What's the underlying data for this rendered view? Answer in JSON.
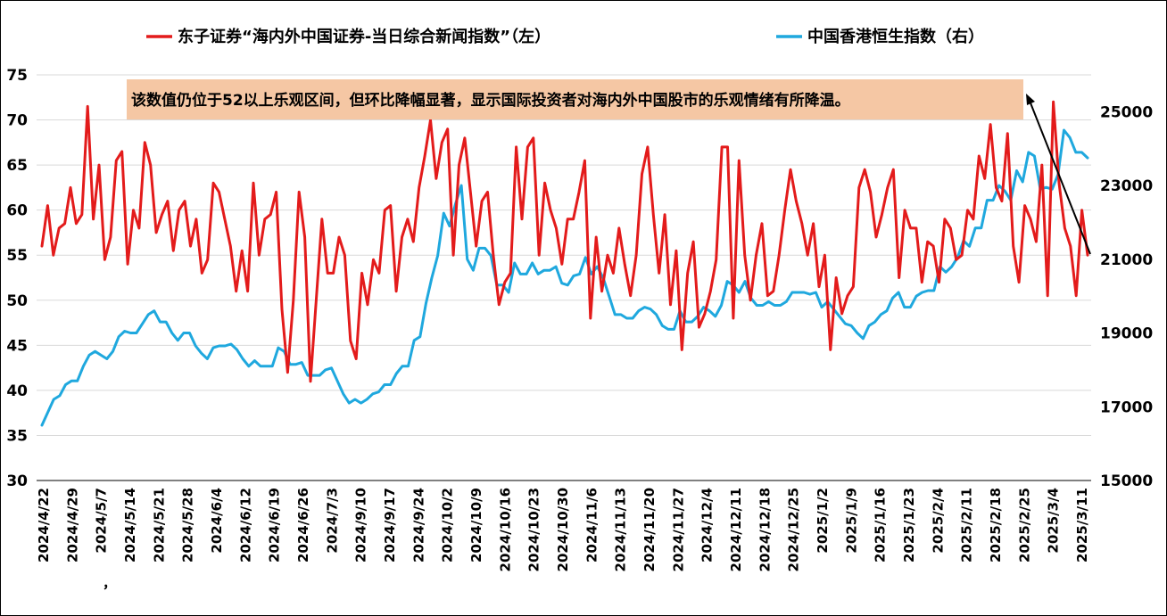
{
  "colors": {
    "red_series": "#e31b1b",
    "blue_series": "#1fa8de",
    "annotation_bg": "#f5c7a4",
    "grid": "#d9d9d9",
    "axis": "#000000"
  },
  "annotation": {
    "text": "该数值仍位于52以上乐观区间，但环比降幅显著，显示国际投资者对海内外中国股市的乐观情绪有所降温。"
  },
  "stray_mark": "，",
  "chart_data": {
    "type": "line",
    "title": "",
    "xlabel": "",
    "grid": "horizontal",
    "legend_position": "top",
    "x_tick_labels": [
      "2024/4/22",
      "2024/4/29",
      "2024/5/7",
      "2024/5/14",
      "2024/5/21",
      "2024/5/28",
      "2024/6/4",
      "2024/6/12",
      "2024/6/19",
      "2024/6/26",
      "2024/7/3",
      "2024/9/10",
      "2024/9/17",
      "2024/9/24",
      "2024/10/2",
      "2024/10/9",
      "2024/10/16",
      "2024/10/23",
      "2024/10/30",
      "2024/11/6",
      "2024/11/13",
      "2024/11/20",
      "2024/11/27",
      "2024/12/4",
      "2024/12/11",
      "2024/12/18",
      "2024/12/25",
      "2025/1/2",
      "2025/1/9",
      "2025/1/16",
      "2025/1/23",
      "2025/2/4",
      "2025/2/11",
      "2025/2/18",
      "2025/2/25",
      "2025/3/4",
      "2025/3/11"
    ],
    "y_left": {
      "min": 30,
      "max": 75,
      "step": 5,
      "tick_labels": [
        "30",
        "35",
        "40",
        "45",
        "50",
        "55",
        "60",
        "65",
        "70",
        "75"
      ]
    },
    "y_right": {
      "min": 15000,
      "max": 26000,
      "tick_labels": [
        "15000",
        "17000",
        "19000",
        "21000",
        "23000",
        "25000"
      ]
    },
    "series": [
      {
        "name": "东子证券“海内外中国证券-当日综合新闻指数”（左）",
        "axis": "left",
        "values": [
          56,
          60.5,
          55,
          58,
          58.5,
          62.5,
          58.5,
          59.5,
          71.5,
          59,
          65,
          54.5,
          57,
          65.5,
          66.5,
          54,
          60,
          58,
          67.5,
          65,
          57.5,
          59.5,
          61,
          55.5,
          60,
          61,
          56,
          59,
          53,
          54.5,
          63,
          62,
          59,
          56,
          51,
          55.5,
          51,
          63,
          55,
          59,
          59.5,
          62,
          49,
          42,
          50,
          62,
          57,
          41,
          50,
          59,
          53,
          53,
          57,
          55,
          45.5,
          43.5,
          53,
          49.5,
          54.5,
          53,
          60,
          60.5,
          51,
          57,
          59,
          56.5,
          62.5,
          66,
          70,
          63.5,
          67.5,
          69,
          55,
          65,
          68,
          62,
          56,
          61,
          62,
          55,
          49.5,
          52,
          53,
          67,
          59,
          67,
          68,
          55,
          63,
          60,
          58,
          54,
          59,
          59,
          62,
          65.5,
          48,
          57,
          51,
          55,
          53,
          58,
          54,
          50.5,
          55,
          64,
          67,
          59.5,
          53,
          59.5,
          49.5,
          55.5,
          44.5,
          53,
          56.5,
          47,
          48.5,
          51,
          54.5,
          67,
          67,
          48,
          65.5,
          55,
          50,
          55,
          58.5,
          50.5,
          51,
          55,
          60,
          64.5,
          61,
          58.5,
          55,
          58.5,
          51.5,
          55,
          44.5,
          52.5,
          48.5,
          50.5,
          51.5,
          62.5,
          64.5,
          62,
          57,
          59.5,
          62.5,
          64.5,
          52.5,
          60,
          58,
          58,
          52,
          56.5,
          56,
          52,
          59,
          58,
          54.5,
          55,
          60,
          59,
          66,
          63.5,
          69.5,
          62.5,
          61,
          68.5,
          56,
          52,
          60.5,
          59,
          56.5,
          65,
          50.5,
          72,
          63,
          58,
          56,
          50.5,
          60,
          55
        ]
      },
      {
        "name": "中国香港恒生指数（右）",
        "axis": "right",
        "values": [
          16500,
          16850,
          17200,
          17300,
          17600,
          17700,
          17700,
          18100,
          18400,
          18500,
          18400,
          18300,
          18500,
          18900,
          19050,
          19000,
          19000,
          19250,
          19500,
          19600,
          19300,
          19300,
          19000,
          18800,
          19000,
          19000,
          18650,
          18450,
          18300,
          18600,
          18650,
          18650,
          18700,
          18550,
          18300,
          18100,
          18250,
          18100,
          18100,
          18100,
          18600,
          18500,
          18150,
          18150,
          18200,
          17850,
          17850,
          17850,
          18000,
          18050,
          17700,
          17350,
          17100,
          17200,
          17100,
          17200,
          17350,
          17400,
          17600,
          17600,
          17900,
          18100,
          18100,
          18800,
          18900,
          19800,
          20500,
          21100,
          22250,
          21900,
          22500,
          23000,
          21000,
          20700,
          21300,
          21300,
          21100,
          20300,
          20300,
          20100,
          20900,
          20600,
          20600,
          20900,
          20600,
          20700,
          20700,
          20800,
          20350,
          20300,
          20550,
          20600,
          21050,
          20600,
          20800,
          20500,
          20000,
          19500,
          19500,
          19400,
          19400,
          19600,
          19700,
          19650,
          19500,
          19200,
          19100,
          19100,
          19600,
          19300,
          19300,
          19450,
          19700,
          19600,
          19450,
          19750,
          20400,
          20300,
          20100,
          20400,
          19950,
          19750,
          19750,
          19850,
          19750,
          19750,
          19850,
          20100,
          20100,
          20100,
          20050,
          20100,
          19700,
          19850,
          19650,
          19450,
          19250,
          19200,
          19000,
          18850,
          19200,
          19300,
          19500,
          19600,
          19950,
          20100,
          19700,
          19700,
          20000,
          20100,
          20150,
          20150,
          20800,
          20650,
          20800,
          21050,
          21500,
          21350,
          21850,
          21850,
          22600,
          22600,
          23000,
          22850,
          22600,
          23400,
          23100,
          23900,
          23800,
          22900,
          22950,
          22900,
          23300,
          24500,
          24300,
          23900,
          23900,
          23750
        ]
      }
    ]
  }
}
